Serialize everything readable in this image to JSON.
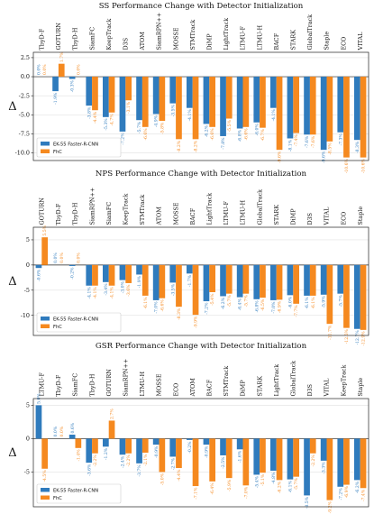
{
  "colors": {
    "series1": "#2f7bbd",
    "series2": "#f5891f"
  },
  "chart_data": [
    {
      "type": "bar",
      "title": "SS Performance Change with Detector Initialization",
      "ylabel": "Δ",
      "ylim": [
        -11.0,
        3.2
      ],
      "yticks": [
        "2.5",
        "0.0",
        "-2.5",
        "-5.0",
        "-7.5",
        "-10.0"
      ],
      "ytick_values": [
        2.5,
        0,
        -2.5,
        -5,
        -7.5,
        -10
      ],
      "categories": [
        "TbyD-F",
        "GOTURN",
        "TbyD-H",
        "SiamFC",
        "KeepTrack",
        "D3S",
        "ATOM",
        "SiamRPN++",
        "MOSSE",
        "STMTrack",
        "DiMP",
        "LightTrack",
        "LTMU-F",
        "LTMU-H",
        "BACF",
        "STARK",
        "GlobalTrack",
        "Staple",
        "ECO",
        "VITAL"
      ],
      "legend_position": "lower-left",
      "series": [
        {
          "name": "EK-55 Faster-R-CNN",
          "values": [
            0.0,
            -1.9,
            -0.3,
            -3.8,
            -5.3,
            -7.2,
            -5.7,
            -4.9,
            -3.5,
            -4.1,
            -6.2,
            -7.8,
            -6.8,
            -6.0,
            -4.1,
            -8.1,
            -7.6,
            -9.6,
            -7.3,
            -8.3
          ]
        },
        {
          "name": "FhC",
          "values": [
            0.0,
            1.7,
            0.0,
            -4.4,
            -4.7,
            -3.1,
            -6.6,
            -5.8,
            -8.2,
            -8.2,
            -6.6,
            -5.5,
            -6.6,
            -6.7,
            -9.6,
            -7.4,
            -7.6,
            -8.5,
            -10.6,
            -10.6
          ]
        },
        {
          "labels": [
            "0.0%",
            "-1.9%",
            "-0.3%",
            "-3.8%",
            "-5.3%",
            "-7.2%",
            "-5.7%",
            "-4.9%",
            "-3.5%",
            "-4.1%",
            "-6.2%",
            "-7.8%",
            "-6.8%",
            "-6.0%",
            "-4.1%",
            "-8.1%",
            "-7.6%",
            "-9.6%",
            "-7.3%",
            "-8.3%"
          ]
        },
        {
          "labels": [
            "0.0%",
            "1.7%",
            "0.0%",
            "-4.4%",
            "-4.7%",
            "-3.1%",
            "-6.6%",
            "-5.8%",
            "-8.2%",
            "-8.2%",
            "-6.6%",
            "-5.5%",
            "-6.6%",
            "-6.7%",
            "-9.6%",
            "-7.4%",
            "-7.6%",
            "-8.5%",
            "-10.6%",
            "-10.6%"
          ]
        }
      ]
    },
    {
      "type": "bar",
      "title": "NPS Performance Change with Detector Initialization",
      "ylabel": "Δ",
      "ylim": [
        -14.0,
        7.5
      ],
      "yticks": [
        "5",
        "0",
        "-5",
        "-10"
      ],
      "ytick_values": [
        5,
        0,
        -5,
        -10
      ],
      "categories": [
        "GOTURN",
        "TbyD-F",
        "TbyD-H",
        "SiamRPN++",
        "SiamFC",
        "KeepTrack",
        "STMTrack",
        "ATOM",
        "MOSSE",
        "BACF",
        "LightTrack",
        "LTMU-F",
        "LTMU-H",
        "GlobalTrack",
        "STARK",
        "DiMP",
        "D3S",
        "VITAL",
        "ECO",
        "Staple"
      ],
      "legend_position": "lower-left",
      "series": [
        {
          "name": "EK-55 Faster-R-CNN",
          "values": [
            -0.6,
            0.0,
            -0.2,
            -4.1,
            -3.4,
            -3.0,
            -1.9,
            -7.0,
            -3.5,
            -1.7,
            -7.2,
            -6.2,
            -6.4,
            -6.8,
            -7.0,
            -6.0,
            -6.1,
            -5.9,
            -5.7,
            -12.7
          ]
        },
        {
          "name": "FhC",
          "values": [
            5.5,
            0.0,
            0.0,
            -4.1,
            -4.1,
            -3.6,
            -6.1,
            -6.6,
            -8.3,
            -9.9,
            -5.4,
            -5.7,
            -5.7,
            -6.5,
            -6.9,
            -7.7,
            -6.1,
            -11.7,
            -12.5,
            -12.9
          ]
        },
        {
          "labels": [
            "-0.6%",
            "0.0%",
            "-0.2%",
            "-4.1%",
            "-3.4%",
            "-3.0%",
            "-1.9%",
            "-7.0%",
            "-3.5%",
            "-1.7%",
            "-7.2%",
            "-6.2%",
            "-6.4%",
            "-6.8%",
            "-7.0%",
            "-6.0%",
            "-6.1%",
            "-5.9%",
            "-5.7%",
            "-12.7%"
          ]
        },
        {
          "labels": [
            "5.5%",
            "0.0%",
            "0.0%",
            "-4.1%",
            "-4.1%",
            "-3.6%",
            "-6.1%",
            "-6.6%",
            "-8.3%",
            "-9.9%",
            "-5.4%",
            "-5.7%",
            "-5.7%",
            "-6.5%",
            "-6.9%",
            "-7.7%",
            "-6.1%",
            "-11.7%",
            "-12.5%",
            "-12.9%"
          ]
        }
      ]
    },
    {
      "type": "bar",
      "title": "GSR Performance Change with Detector Initialization",
      "ylabel": "Δ",
      "ylim": [
        -10.2,
        6.0
      ],
      "yticks": [
        "5",
        "0",
        "-5"
      ],
      "ytick_values": [
        5,
        0,
        -5
      ],
      "categories": [
        "LTMU-F",
        "TbyD-F",
        "SiamFC",
        "TbyD-H",
        "GOTURN",
        "SiamRPN++",
        "LTMU-H",
        "MOSSE",
        "ECO",
        "ATOM",
        "BACF",
        "STMTrack",
        "DiMP",
        "STARK",
        "LightTrack",
        "GlobalTrack",
        "D3S",
        "VITAL",
        "KeepTrack",
        "Staple"
      ],
      "legend_position": "lower-left",
      "series": [
        {
          "name": "EK-55 Faster-R-CNN",
          "values": [
            5.0,
            0.0,
            0.6,
            -3.6,
            -1.2,
            -2.4,
            -3.7,
            -0.9,
            -2.7,
            -0.2,
            -0.9,
            -2.5,
            -1.6,
            -5.4,
            -4.8,
            -6.1,
            -8.5,
            -3.3,
            -7.2,
            -6.2
          ]
        },
        {
          "name": "FhC",
          "values": [
            -4.5,
            0.0,
            -1.4,
            -2.2,
            2.7,
            -2.2,
            -2.1,
            -5.0,
            -4.4,
            -7.1,
            -6.4,
            -5.9,
            -7.0,
            -5.1,
            -6.2,
            -5.7,
            -2.2,
            -9.2,
            -6.9,
            -7.4
          ]
        },
        {
          "labels": [
            "5.0%",
            "0.0%",
            "0.6%",
            "-3.6%",
            "-1.2%",
            "-2.4%",
            "-3.7%",
            "-0.9%",
            "-2.7%",
            "-0.2%",
            "-0.9%",
            "-2.5%",
            "-1.6%",
            "-5.4%",
            "-4.8%",
            "-6.1%",
            "-8.5%",
            "-3.3%",
            "-7.2%",
            "-6.2%"
          ]
        },
        {
          "labels": [
            "-4.5%",
            "0.0%",
            "-1.4%",
            "-2.2%",
            "2.7%",
            "-2.2%",
            "-2.1%",
            "-5.0%",
            "-4.4%",
            "-7.1%",
            "-6.4%",
            "-5.9%",
            "-7.0%",
            "-5.1%",
            "-6.2%",
            "-5.7%",
            "-2.2%",
            "-9.2%",
            "-6.9%",
            "-7.4%"
          ]
        }
      ]
    }
  ]
}
